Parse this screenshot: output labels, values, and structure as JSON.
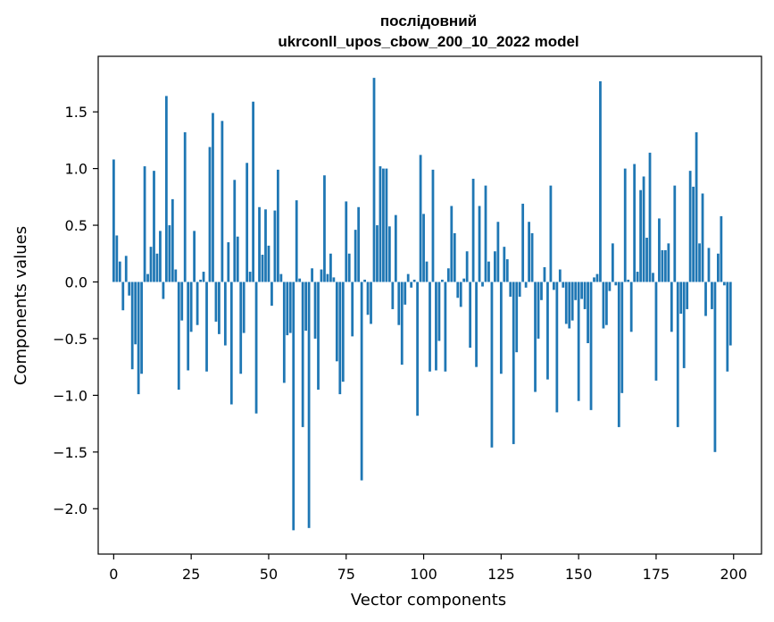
{
  "chart_data": {
    "type": "bar",
    "title_line1": "послідовний",
    "title_line2": "ukrconll_upos_cbow_200_10_2022 model",
    "xlabel": "Vector components",
    "ylabel": "Components values",
    "xlim": [
      -5,
      209
    ],
    "ylim": [
      -2.4,
      1.99
    ],
    "x_ticks": [
      0,
      25,
      50,
      75,
      100,
      125,
      150,
      175,
      200
    ],
    "y_ticks": [
      -2.0,
      -1.5,
      -1.0,
      -0.5,
      0.0,
      0.5,
      1.0,
      1.5
    ],
    "bar_color": "#1f77b4",
    "values": [
      1.08,
      0.41,
      0.18,
      -0.25,
      0.23,
      -0.12,
      -0.77,
      -0.55,
      -0.99,
      -0.81,
      1.02,
      0.07,
      0.31,
      0.98,
      0.25,
      0.45,
      -0.15,
      1.64,
      0.5,
      0.73,
      0.11,
      -0.95,
      -0.34,
      1.32,
      -0.78,
      -0.44,
      0.45,
      -0.38,
      0.02,
      0.09,
      -0.79,
      1.19,
      1.49,
      -0.35,
      -0.46,
      1.42,
      -0.56,
      0.35,
      -1.08,
      0.9,
      0.4,
      -0.81,
      -0.45,
      1.05,
      0.09,
      1.59,
      -1.16,
      0.66,
      0.24,
      0.64,
      0.32,
      -0.21,
      0.63,
      0.99,
      0.07,
      -0.89,
      -0.47,
      -0.45,
      -2.19,
      0.72,
      0.03,
      -1.28,
      -0.43,
      -2.17,
      0.12,
      -0.5,
      -0.95,
      0.11,
      0.94,
      0.07,
      0.25,
      0.04,
      -0.7,
      -0.99,
      -0.88,
      0.71,
      0.25,
      -0.48,
      0.46,
      0.66,
      -1.75,
      0.02,
      -0.29,
      -0.37,
      1.8,
      0.5,
      1.02,
      1.0,
      1.0,
      0.49,
      -0.24,
      0.59,
      -0.38,
      -0.73,
      -0.2,
      0.07,
      -0.05,
      0.02,
      -1.18,
      1.12,
      0.6,
      0.18,
      -0.79,
      0.99,
      -0.78,
      -0.52,
      0.02,
      -0.79,
      0.12,
      0.67,
      0.43,
      -0.14,
      -0.22,
      0.03,
      0.27,
      -0.58,
      0.91,
      -0.75,
      0.67,
      -0.04,
      0.85,
      0.18,
      -1.46,
      0.27,
      0.53,
      -0.81,
      0.31,
      0.2,
      -0.13,
      -1.43,
      -0.62,
      -0.13,
      0.69,
      -0.05,
      0.53,
      0.43,
      -0.97,
      -0.5,
      -0.16,
      0.13,
      -0.86,
      0.85,
      -0.07,
      -1.15,
      0.11,
      -0.05,
      -0.37,
      -0.41,
      -0.34,
      -0.16,
      -1.05,
      -0.15,
      -0.24,
      -0.54,
      -1.13,
      0.04,
      0.07,
      1.77,
      -0.41,
      -0.38,
      -0.08,
      0.34,
      -0.03,
      -1.28,
      -0.98,
      1.0,
      0.02,
      -0.44,
      1.04,
      0.09,
      0.81,
      0.93,
      0.39,
      1.14,
      0.08,
      -0.87,
      0.56,
      0.28,
      0.28,
      0.34,
      -0.44,
      0.85,
      -1.28,
      -0.28,
      -0.76,
      -0.24,
      0.98,
      0.84,
      1.32,
      0.34,
      0.78,
      -0.3,
      0.3,
      -0.24,
      -1.5,
      0.25,
      0.58,
      -0.03,
      -0.79,
      -0.56
    ]
  }
}
